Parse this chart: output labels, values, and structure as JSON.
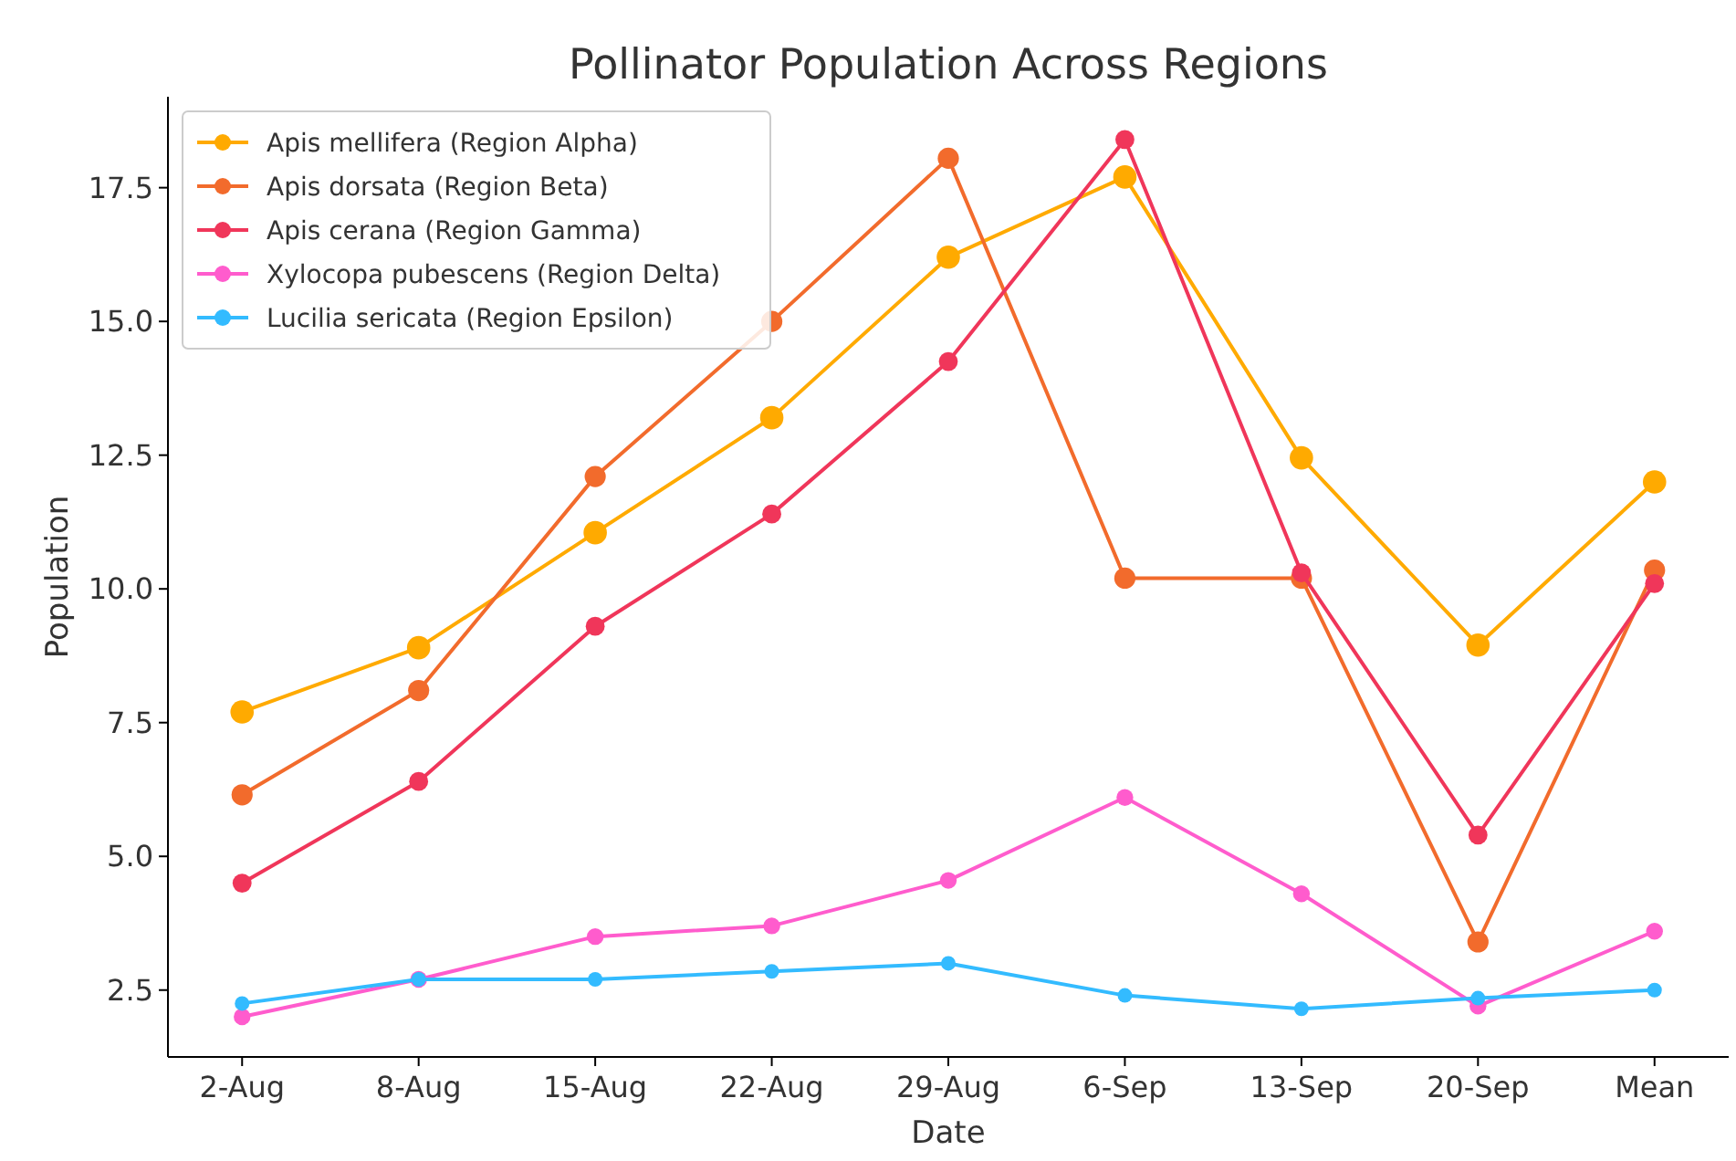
{
  "chart_data": {
    "type": "line",
    "title": "Pollinator Population Across Regions",
    "xlabel": "Date",
    "ylabel": "Population",
    "categories": [
      "2-Aug",
      "8-Aug",
      "15-Aug",
      "22-Aug",
      "29-Aug",
      "6-Sep",
      "13-Sep",
      "20-Sep",
      "Mean"
    ],
    "series": [
      {
        "name": "Apis mellifera (Region Alpha)",
        "color": "#ffaa00",
        "values": [
          7.7,
          8.9,
          11.05,
          13.2,
          16.2,
          17.7,
          12.45,
          8.95,
          12.0
        ]
      },
      {
        "name": "Apis dorsata (Region Beta)",
        "color": "#f26b2c",
        "values": [
          6.15,
          8.1,
          12.1,
          15.0,
          18.05,
          10.2,
          10.2,
          3.4,
          10.35
        ]
      },
      {
        "name": "Apis cerana (Region Gamma)",
        "color": "#f0365a",
        "values": [
          4.5,
          6.4,
          9.3,
          11.4,
          14.25,
          18.4,
          10.3,
          5.4,
          10.1
        ]
      },
      {
        "name": "Xylocopa pubescens (Region Delta)",
        "color": "#ff5ccd",
        "values": [
          2.0,
          2.7,
          3.5,
          3.7,
          4.55,
          6.1,
          4.3,
          2.2,
          3.6
        ]
      },
      {
        "name": "Lucilia sericata (Region Epsilon)",
        "color": "#33bbff",
        "values": [
          2.25,
          2.7,
          2.7,
          2.85,
          3.0,
          2.4,
          2.15,
          2.35,
          2.5
        ]
      }
    ],
    "ylim": [
      1.25,
      19.2
    ],
    "yticks": [
      {
        "value": 2.5,
        "label": "2.5"
      },
      {
        "value": 5,
        "label": "5.0"
      },
      {
        "value": 7.5,
        "label": "7.5"
      },
      {
        "value": 10,
        "label": "10.0"
      },
      {
        "value": 12.5,
        "label": "12.5"
      },
      {
        "value": 15,
        "label": "15.0"
      },
      {
        "value": 17.5,
        "label": "17.5"
      }
    ],
    "legend": "top left",
    "marker": "circle",
    "line_style": "solid",
    "grid": false
  }
}
